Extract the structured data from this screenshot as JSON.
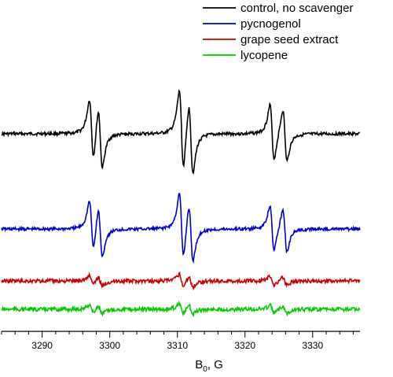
{
  "chart_data": {
    "type": "line",
    "title": "",
    "xlabel": "B",
    "xlabel_subscript": "0",
    "xlabel_unit": ", G",
    "ylabel": "",
    "xlim": [
      3284,
      3337
    ],
    "xticks": [
      3290,
      3300,
      3310,
      3320,
      3330
    ],
    "x_minor_step": 2,
    "grid": false,
    "legend_position": "top-right",
    "y_axis_visible": false,
    "series": [
      {
        "name": "control, no scavenger",
        "color": "#000000",
        "baseline": 170,
        "scale": 1.0
      },
      {
        "name": "pycnogenol",
        "color": "#0000cc",
        "baseline": 291,
        "scale": 0.82
      },
      {
        "name": "grape seed extract",
        "color": "#cc0000",
        "baseline": 357,
        "scale": 0.16
      },
      {
        "name": "lycopene",
        "color": "#00cc00",
        "baseline": 393,
        "scale": 0.14
      }
    ]
  }
}
